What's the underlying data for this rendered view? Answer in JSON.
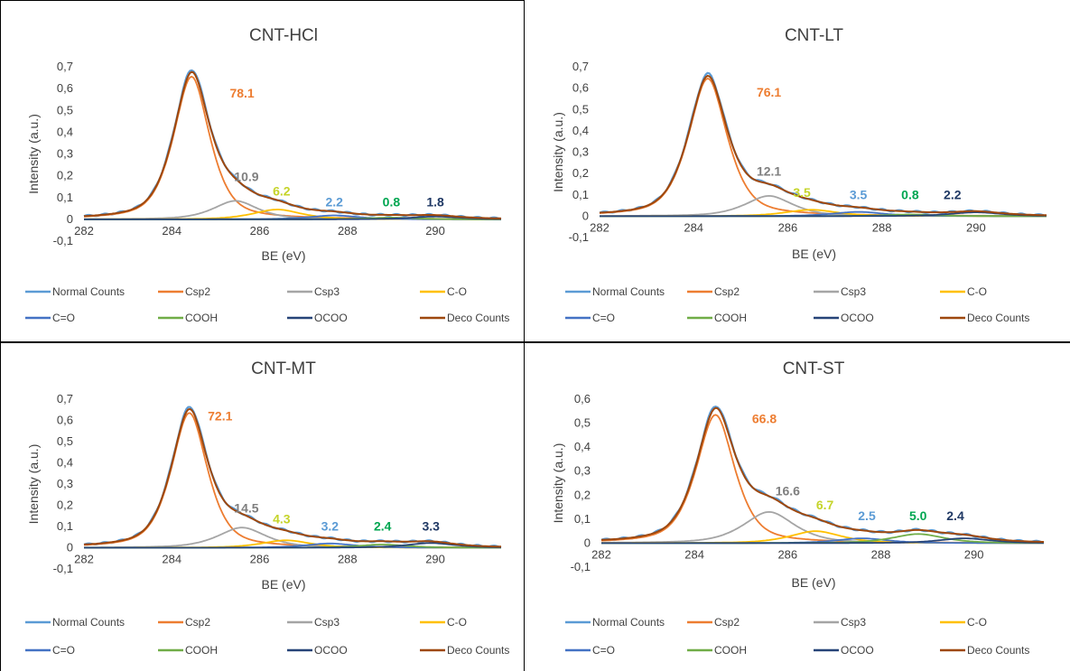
{
  "chart_data": [
    {
      "type": "line",
      "title": "CNT-HCl",
      "xlabel": "BE (eV)",
      "ylabel": "Intensity (a.u.)",
      "xlim": [
        282,
        291.5
      ],
      "ylim": [
        -0.1,
        0.7
      ],
      "yticks": [
        "-0,1",
        "0",
        "0,1",
        "0,2",
        "0,3",
        "0,4",
        "0,5",
        "0,6",
        "0,7"
      ],
      "xticks": [
        "282",
        "284",
        "286",
        "288",
        "290"
      ],
      "peaks": {
        "Csp2": {
          "center": 284.45,
          "amp": 0.655,
          "width": 0.45
        },
        "Csp3": {
          "center": 285.45,
          "amp": 0.085,
          "width": 0.55
        },
        "C-O": {
          "center": 286.4,
          "amp": 0.045,
          "width": 0.6
        },
        "C=O": {
          "center": 287.7,
          "amp": 0.018,
          "width": 0.6
        },
        "COOH": {
          "center": 289.0,
          "amp": 0.008,
          "width": 0.6
        },
        "OCOO": {
          "center": 290.0,
          "amp": 0.013,
          "width": 0.6
        }
      },
      "annotations": [
        {
          "text": "78.1",
          "x": 285.6,
          "y": 0.56,
          "series": "Csp2"
        },
        {
          "text": "10.9",
          "x": 285.7,
          "y": 0.175,
          "series": "Csp3"
        },
        {
          "text": "6.2",
          "x": 286.5,
          "y": 0.11,
          "series": "C-O"
        },
        {
          "text": "2.2",
          "x": 287.7,
          "y": 0.06,
          "series": "C=O"
        },
        {
          "text": "0.8",
          "x": 289.0,
          "y": 0.06,
          "series": "COOH"
        },
        {
          "text": "1.8",
          "x": 290.0,
          "y": 0.06,
          "series": "OCOO"
        }
      ]
    },
    {
      "type": "line",
      "title": "CNT-LT",
      "xlabel": "BE (eV)",
      "ylabel": "Intensity (a.u.)",
      "xlim": [
        282,
        291.5
      ],
      "ylim": [
        -0.1,
        0.7
      ],
      "yticks": [
        "-0,1",
        "0",
        "0,1",
        "0,2",
        "0,3",
        "0,4",
        "0,5",
        "0,6",
        "0,7"
      ],
      "xticks": [
        "282",
        "284",
        "286",
        "288",
        "290"
      ],
      "peaks": {
        "Csp2": {
          "center": 284.3,
          "amp": 0.645,
          "width": 0.45
        },
        "Csp3": {
          "center": 285.6,
          "amp": 0.095,
          "width": 0.55
        },
        "C-O": {
          "center": 286.5,
          "amp": 0.03,
          "width": 0.6
        },
        "C=O": {
          "center": 287.5,
          "amp": 0.02,
          "width": 0.6
        },
        "COOH": {
          "center": 288.6,
          "amp": 0.008,
          "width": 0.6
        },
        "OCOO": {
          "center": 290.0,
          "amp": 0.018,
          "width": 0.6
        }
      },
      "annotations": [
        {
          "text": "76.1",
          "x": 285.6,
          "y": 0.56,
          "series": "Csp2"
        },
        {
          "text": "12.1",
          "x": 285.6,
          "y": 0.19,
          "series": "Csp3"
        },
        {
          "text": "3.5",
          "x": 286.3,
          "y": 0.09,
          "series": "C-O"
        },
        {
          "text": "3.5",
          "x": 287.5,
          "y": 0.08,
          "series": "C=O"
        },
        {
          "text": "0.8",
          "x": 288.6,
          "y": 0.08,
          "series": "COOH"
        },
        {
          "text": "2.2",
          "x": 289.5,
          "y": 0.08,
          "series": "OCOO"
        }
      ]
    },
    {
      "type": "line",
      "title": "CNT-MT",
      "xlabel": "BE (eV)",
      "ylabel": "Intensity (a.u.)",
      "xlim": [
        282,
        291.5
      ],
      "ylim": [
        -0.1,
        0.7
      ],
      "yticks": [
        "-0,1",
        "0",
        "0,1",
        "0,2",
        "0,3",
        "0,4",
        "0,5",
        "0,6",
        "0,7"
      ],
      "xticks": [
        "282",
        "284",
        "286",
        "288",
        "290"
      ],
      "peaks": {
        "Csp2": {
          "center": 284.4,
          "amp": 0.635,
          "width": 0.45
        },
        "Csp3": {
          "center": 285.6,
          "amp": 0.095,
          "width": 0.6
        },
        "C-O": {
          "center": 286.6,
          "amp": 0.035,
          "width": 0.6
        },
        "C=O": {
          "center": 287.6,
          "amp": 0.02,
          "width": 0.6
        },
        "COOH": {
          "center": 288.8,
          "amp": 0.015,
          "width": 0.6
        },
        "OCOO": {
          "center": 289.9,
          "amp": 0.022,
          "width": 0.6
        }
      },
      "annotations": [
        {
          "text": "72.1",
          "x": 285.1,
          "y": 0.6,
          "series": "Csp2"
        },
        {
          "text": "14.5",
          "x": 285.7,
          "y": 0.165,
          "series": "Csp3"
        },
        {
          "text": "4.3",
          "x": 286.5,
          "y": 0.115,
          "series": "C-O"
        },
        {
          "text": "3.2",
          "x": 287.6,
          "y": 0.08,
          "series": "C=O"
        },
        {
          "text": "2.4",
          "x": 288.8,
          "y": 0.08,
          "series": "COOH"
        },
        {
          "text": "3.3",
          "x": 289.9,
          "y": 0.08,
          "series": "OCOO"
        }
      ]
    },
    {
      "type": "line",
      "title": "CNT-ST",
      "xlabel": "BE (eV)",
      "ylabel": "Intensity (a.u.)",
      "xlim": [
        282,
        291.5
      ],
      "ylim": [
        -0.1,
        0.6
      ],
      "yticks": [
        "-0,1",
        "0",
        "0,1",
        "0,2",
        "0,3",
        "0,4",
        "0,5",
        "0,6"
      ],
      "xticks": [
        "282",
        "284",
        "286",
        "288",
        "290"
      ],
      "peaks": {
        "Csp2": {
          "center": 284.45,
          "amp": 0.535,
          "width": 0.45
        },
        "Csp3": {
          "center": 285.6,
          "amp": 0.13,
          "width": 0.6
        },
        "C-O": {
          "center": 286.6,
          "amp": 0.05,
          "width": 0.6
        },
        "C=O": {
          "center": 287.6,
          "amp": 0.02,
          "width": 0.6
        },
        "COOH": {
          "center": 288.8,
          "amp": 0.038,
          "width": 0.6
        },
        "OCOO": {
          "center": 289.8,
          "amp": 0.02,
          "width": 0.6
        }
      },
      "annotations": [
        {
          "text": "66.8",
          "x": 285.5,
          "y": 0.5,
          "series": "Csp2"
        },
        {
          "text": "16.6",
          "x": 286.0,
          "y": 0.2,
          "series": "Csp3"
        },
        {
          "text": "6.7",
          "x": 286.8,
          "y": 0.14,
          "series": "C-O"
        },
        {
          "text": "2.5",
          "x": 287.7,
          "y": 0.095,
          "series": "C=O"
        },
        {
          "text": "5.0",
          "x": 288.8,
          "y": 0.095,
          "series": "COOH"
        },
        {
          "text": "2.4",
          "x": 289.6,
          "y": 0.095,
          "series": "OCOO"
        }
      ]
    }
  ],
  "legend": [
    {
      "name": "Normal Counts",
      "color": "#5b9bd5"
    },
    {
      "name": "Csp2",
      "color": "#ed7d31"
    },
    {
      "name": "Csp3",
      "color": "#a5a5a5"
    },
    {
      "name": "C-O",
      "color": "#ffc000"
    },
    {
      "name": "C=O",
      "color": "#4472c4"
    },
    {
      "name": "COOH",
      "color": "#70ad47"
    },
    {
      "name": "OCOO",
      "color": "#264478"
    },
    {
      "name": "Deco Counts",
      "color": "#9e480e"
    }
  ],
  "label_colors": {
    "Csp2": "#ed7d31",
    "Csp3": "#7f7f7f",
    "C-O": "#c5d42a",
    "C=O": "#5b9bd5",
    "COOH": "#00a651",
    "OCOO": "#1f3864"
  }
}
